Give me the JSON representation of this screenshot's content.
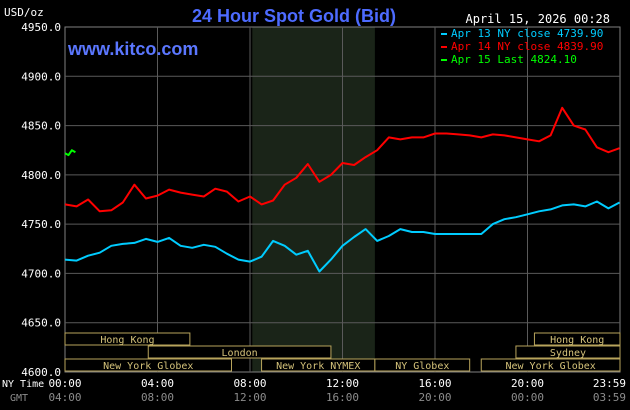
{
  "chart_data": {
    "type": "line",
    "title": "24 Hour Spot Gold (Bid)",
    "watermark": "www.kitco.com",
    "timestamp": "April 15, 2026 00:28",
    "yunit": "USD/oz",
    "ylim": [
      4600,
      4950
    ],
    "yticks": [
      "4950.0",
      "4900.0",
      "4850.0",
      "4800.0",
      "4750.0",
      "4700.0",
      "4650.0",
      "4600.0"
    ],
    "xlim": [
      0,
      24
    ],
    "xticks_ny": [
      "00:00",
      "04:00",
      "08:00",
      "12:00",
      "16:00",
      "20:00",
      "23:59"
    ],
    "xticks_gmt": [
      "04:00",
      "08:00",
      "12:00",
      "16:00",
      "20:00",
      "00:00",
      "03:59"
    ],
    "x_row_labels": [
      "NY Time",
      "GMT"
    ],
    "grid": true,
    "shaded_region": [
      8.1,
      13.4
    ],
    "legend_position": "top-right",
    "series": [
      {
        "name": "Apr 13 NY close 4739.90",
        "color": "#00ccff",
        "x": [
          0,
          0.5,
          1,
          1.5,
          2,
          2.5,
          3,
          3.5,
          4,
          4.5,
          5,
          5.5,
          6,
          6.5,
          7,
          7.5,
          8,
          8.5,
          9,
          9.5,
          10,
          10.5,
          11,
          11.5,
          12,
          12.5,
          13,
          13.5,
          14,
          14.5,
          15,
          15.5,
          16,
          16.5,
          17,
          17.5,
          18,
          18.5,
          19,
          19.5,
          20,
          20.5,
          21,
          21.5,
          22,
          22.5,
          23,
          23.5,
          23.98
        ],
        "y": [
          4714,
          4713,
          4718,
          4721,
          4728,
          4730,
          4731,
          4735,
          4732,
          4736,
          4728,
          4726,
          4729,
          4727,
          4720,
          4714,
          4712,
          4717,
          4733,
          4728,
          4719,
          4723,
          4702,
          4714,
          4728,
          4737,
          4745,
          4733,
          4738,
          4745,
          4742,
          4742,
          4740,
          4740,
          4740,
          4740,
          4740,
          4750,
          4755,
          4757,
          4760,
          4763,
          4765,
          4769,
          4770,
          4768,
          4773,
          4766,
          4772
        ]
      },
      {
        "name": "Apr 14 NY close 4839.90",
        "color": "#ff0000",
        "x": [
          0,
          0.5,
          1,
          1.5,
          2,
          2.5,
          3,
          3.5,
          4,
          4.5,
          5,
          5.5,
          6,
          6.5,
          7,
          7.5,
          8,
          8.5,
          9,
          9.5,
          10,
          10.5,
          11,
          11.5,
          12,
          12.5,
          13,
          13.5,
          14,
          14.5,
          15,
          15.5,
          16,
          16.5,
          17,
          17.5,
          18,
          18.5,
          19,
          19.5,
          20,
          20.5,
          21,
          21.5,
          22,
          22.5,
          23,
          23.5,
          23.98
        ],
        "y": [
          4770,
          4768,
          4775,
          4763,
          4764,
          4772,
          4790,
          4776,
          4779,
          4785,
          4782,
          4780,
          4778,
          4786,
          4783,
          4773,
          4778,
          4770,
          4774,
          4790,
          4797,
          4811,
          4793,
          4800,
          4812,
          4810,
          4818,
          4825,
          4838,
          4836,
          4838,
          4838,
          4842,
          4842,
          4841,
          4840,
          4838,
          4841,
          4840,
          4838,
          4836,
          4834,
          4840,
          4868,
          4850,
          4846,
          4828,
          4823,
          4827
        ]
      },
      {
        "name": "Apr 15 Last 4824.10",
        "color": "#00ff00",
        "x": [
          0,
          0.15,
          0.3,
          0.45
        ],
        "y": [
          4822,
          4820,
          4825,
          4823
        ]
      }
    ],
    "sessions": [
      {
        "name": "Hong Kong",
        "start": 0,
        "end": 5.4,
        "row": 0
      },
      {
        "name": "London",
        "start": 3.6,
        "end": 11.5,
        "row": 1
      },
      {
        "name": "New York Globex",
        "start": 0,
        "end": 7.2,
        "row": 2
      },
      {
        "name": "New York NYMEX",
        "start": 8.5,
        "end": 13.4,
        "row": 2
      },
      {
        "name": "NY Globex",
        "start": 13.4,
        "end": 17.5,
        "row": 2
      },
      {
        "name": "Hong Kong",
        "start": 20.3,
        "end": 24,
        "row": 0
      },
      {
        "name": "Sydney",
        "start": 19.5,
        "end": 24,
        "row": 1
      },
      {
        "name": "New York Globex",
        "start": 18,
        "end": 24,
        "row": 2
      }
    ]
  }
}
